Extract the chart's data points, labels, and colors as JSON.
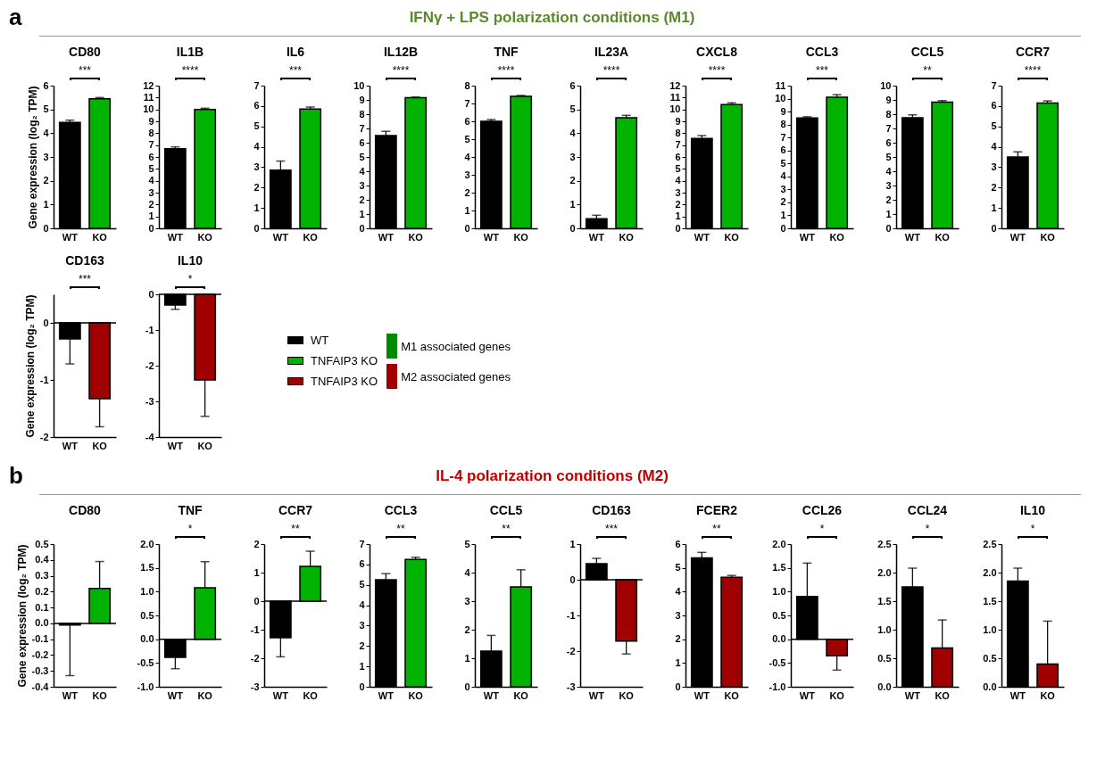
{
  "chart_data": [
    {
      "type": "other",
      "title": "IFNγ + LPS polarization conditions (M1)",
      "annotations": [
        "a"
      ],
      "colors": [
        "#5b8a2e"
      ]
    },
    {
      "type": "bar",
      "title": "CD80",
      "ylabel": "Gene expression (log₂ TPM)",
      "categories": [
        "WT",
        "KO"
      ],
      "values": [
        4.45,
        5.45
      ],
      "colors": [
        "#000000",
        "#00b300"
      ],
      "errors": [
        [
          4.45,
          4.55
        ],
        [
          5.45,
          5.5
        ]
      ],
      "ylim": [
        0,
        6
      ],
      "yticks": [
        0,
        1,
        2,
        3,
        4,
        5,
        6
      ],
      "annotations": [
        "***"
      ]
    },
    {
      "type": "bar",
      "title": "IL1B",
      "categories": [
        "WT",
        "KO"
      ],
      "values": [
        6.7,
        10.0
      ],
      "colors": [
        "#000000",
        "#00b300"
      ],
      "errors": [
        [
          6.7,
          6.85
        ],
        [
          10.0,
          10.1
        ]
      ],
      "ylim": [
        0,
        12
      ],
      "yticks": [
        0,
        1,
        2,
        3,
        4,
        5,
        6,
        7,
        8,
        9,
        10,
        11,
        12
      ],
      "annotations": [
        "****"
      ]
    },
    {
      "type": "bar",
      "title": "IL6",
      "categories": [
        "WT",
        "KO"
      ],
      "values": [
        2.85,
        5.85
      ],
      "colors": [
        "#000000",
        "#00b300"
      ],
      "errors": [
        [
          2.85,
          3.3
        ],
        [
          5.85,
          5.95
        ]
      ],
      "ylim": [
        0,
        7
      ],
      "yticks": [
        0,
        1,
        2,
        3,
        4,
        5,
        6,
        7
      ],
      "annotations": [
        "***"
      ]
    },
    {
      "type": "bar",
      "title": "IL12B",
      "categories": [
        "WT",
        "KO"
      ],
      "values": [
        6.5,
        9.15
      ],
      "colors": [
        "#000000",
        "#00b300"
      ],
      "errors": [
        [
          6.5,
          6.8
        ],
        [
          9.15,
          9.2
        ]
      ],
      "ylim": [
        0,
        10
      ],
      "yticks": [
        0,
        1,
        2,
        3,
        4,
        5,
        6,
        7,
        8,
        9,
        10
      ],
      "annotations": [
        "****"
      ]
    },
    {
      "type": "bar",
      "title": "TNF",
      "categories": [
        "WT",
        "KO"
      ],
      "values": [
        6.0,
        7.4
      ],
      "colors": [
        "#000000",
        "#00b300"
      ],
      "errors": [
        [
          6.0,
          6.1
        ],
        [
          7.4,
          7.45
        ]
      ],
      "ylim": [
        0,
        8
      ],
      "yticks": [
        0,
        1,
        2,
        3,
        4,
        5,
        6,
        7,
        8
      ],
      "annotations": [
        "****"
      ]
    },
    {
      "type": "bar",
      "title": "IL23A",
      "categories": [
        "WT",
        "KO"
      ],
      "values": [
        0.4,
        4.65
      ],
      "colors": [
        "#000000",
        "#00b300"
      ],
      "errors": [
        [
          0.4,
          0.55
        ],
        [
          4.65,
          4.75
        ]
      ],
      "ylim": [
        0,
        6
      ],
      "yticks": [
        0,
        1,
        2,
        3,
        4,
        5,
        6
      ],
      "annotations": [
        "****"
      ]
    },
    {
      "type": "bar",
      "title": "CXCL8",
      "categories": [
        "WT",
        "KO"
      ],
      "values": [
        7.55,
        10.4
      ],
      "colors": [
        "#000000",
        "#00b300"
      ],
      "errors": [
        [
          7.55,
          7.8
        ],
        [
          10.4,
          10.55
        ]
      ],
      "ylim": [
        0,
        12
      ],
      "yticks": [
        0,
        1,
        2,
        3,
        4,
        5,
        6,
        7,
        8,
        9,
        10,
        11,
        12
      ],
      "annotations": [
        "****"
      ]
    },
    {
      "type": "bar",
      "title": "CCL3",
      "categories": [
        "WT",
        "KO"
      ],
      "values": [
        8.5,
        10.1
      ],
      "colors": [
        "#000000",
        "#00b300"
      ],
      "errors": [
        [
          8.5,
          8.6
        ],
        [
          10.1,
          10.3
        ]
      ],
      "ylim": [
        0,
        11
      ],
      "yticks": [
        0,
        1,
        2,
        3,
        4,
        5,
        6,
        7,
        8,
        9,
        10,
        11
      ],
      "annotations": [
        "***"
      ]
    },
    {
      "type": "bar",
      "title": "CCL5",
      "categories": [
        "WT",
        "KO"
      ],
      "values": [
        7.75,
        8.85
      ],
      "colors": [
        "#000000",
        "#00b300"
      ],
      "errors": [
        [
          7.75,
          7.95
        ],
        [
          8.85,
          8.95
        ]
      ],
      "ylim": [
        0,
        10
      ],
      "yticks": [
        0,
        1,
        2,
        3,
        4,
        5,
        6,
        7,
        8,
        9,
        10
      ],
      "annotations": [
        "**"
      ]
    },
    {
      "type": "bar",
      "title": "CCR7",
      "categories": [
        "WT",
        "KO"
      ],
      "values": [
        3.5,
        6.15
      ],
      "colors": [
        "#000000",
        "#00b300"
      ],
      "errors": [
        [
          3.5,
          3.75
        ],
        [
          6.15,
          6.25
        ]
      ],
      "ylim": [
        0,
        7
      ],
      "yticks": [
        0,
        1,
        2,
        3,
        4,
        5,
        6,
        7
      ],
      "annotations": [
        "****"
      ]
    },
    {
      "type": "bar",
      "title": "CD163",
      "ylabel": "Gene expression (log₂ TPM)",
      "categories": [
        "WT",
        "KO"
      ],
      "values": [
        -0.28,
        -1.33
      ],
      "colors": [
        "#000000",
        "#a00000"
      ],
      "errors": [
        [
          -0.72,
          -0.28
        ],
        [
          -1.82,
          -1.33
        ]
      ],
      "ylim": [
        -2,
        0.5
      ],
      "yticks": [
        -2,
        -1,
        0
      ],
      "ref_lines": [
        {
          "axis": "y",
          "value": 0
        }
      ],
      "annotations": [
        "***"
      ]
    },
    {
      "type": "bar",
      "title": "IL10",
      "categories": [
        "WT",
        "KO"
      ],
      "values": [
        -0.3,
        -2.4
      ],
      "colors": [
        "#000000",
        "#a00000"
      ],
      "errors": [
        [
          -0.42,
          -0.3
        ],
        [
          -3.42,
          -2.4
        ]
      ],
      "ylim": [
        -4,
        0
      ],
      "yticks": [
        -4,
        -3,
        -2,
        -1,
        0
      ],
      "ref_lines": [
        {
          "axis": "y",
          "value": 0
        }
      ],
      "annotations": [
        "*"
      ]
    },
    {
      "type": "other",
      "legend": "right",
      "series": [
        {
          "name": "WT",
          "color": "#000000"
        },
        {
          "name": "TNFAIP3 KO",
          "color": "#00b300"
        },
        {
          "name": "TNFAIP3 KO",
          "color": "#a00000"
        },
        {
          "name": "M1 associated genes",
          "color": "#008a00"
        },
        {
          "name": "M2 associated genes",
          "color": "#a00000"
        }
      ]
    },
    {
      "type": "other",
      "title": "IL-4 polarization conditions (M2)",
      "annotations": [
        "b"
      ],
      "colors": [
        "#c00000"
      ]
    },
    {
      "type": "bar",
      "title": "CD80",
      "ylabel": "Gene expression (log₂ TPM)",
      "categories": [
        "WT",
        "KO"
      ],
      "values": [
        -0.01,
        0.22
      ],
      "colors": [
        "#000000",
        "#00b300"
      ],
      "errors": [
        [
          -0.33,
          -0.01
        ],
        [
          0.22,
          0.39
        ]
      ],
      "ylim": [
        -0.4,
        0.5
      ],
      "yticks": [
        -0.4,
        -0.3,
        -0.2,
        -0.1,
        {
          "value": 0,
          "label": "0.0"
        },
        0.1,
        0.2,
        0.3,
        0.4,
        0.5
      ],
      "ref_lines": [
        {
          "axis": "y",
          "value": 0
        }
      ]
    },
    {
      "type": "bar",
      "title": "TNF",
      "categories": [
        "WT",
        "KO"
      ],
      "values": [
        -0.38,
        1.08
      ],
      "colors": [
        "#000000",
        "#00b300"
      ],
      "errors": [
        [
          -0.62,
          -0.38
        ],
        [
          1.08,
          1.63
        ]
      ],
      "ylim": [
        -1,
        2
      ],
      "yticks": [
        {
          "value": -1,
          "label": "-1.0"
        },
        -0.5,
        {
          "value": 0,
          "label": "0.0"
        },
        0.5,
        {
          "value": 1,
          "label": "1.0"
        },
        1.5,
        {
          "value": 2,
          "label": "2.0"
        }
      ],
      "ref_lines": [
        {
          "axis": "y",
          "value": 0
        }
      ],
      "annotations": [
        "*"
      ]
    },
    {
      "type": "bar",
      "title": "CCR7",
      "categories": [
        "WT",
        "KO"
      ],
      "values": [
        -1.28,
        1.22
      ],
      "colors": [
        "#000000",
        "#00b300"
      ],
      "errors": [
        [
          -1.95,
          -1.28
        ],
        [
          1.22,
          1.75
        ]
      ],
      "ylim": [
        -3,
        2
      ],
      "yticks": [
        -3,
        -2,
        -1,
        0,
        1,
        2
      ],
      "ref_lines": [
        {
          "axis": "y",
          "value": 0
        }
      ],
      "annotations": [
        "**"
      ]
    },
    {
      "type": "bar",
      "title": "CCL3",
      "categories": [
        "WT",
        "KO"
      ],
      "values": [
        5.25,
        6.25
      ],
      "colors": [
        "#000000",
        "#00b300"
      ],
      "errors": [
        [
          5.25,
          5.55
        ],
        [
          6.25,
          6.35
        ]
      ],
      "ylim": [
        0,
        7
      ],
      "yticks": [
        0,
        1,
        2,
        3,
        4,
        5,
        6,
        7
      ],
      "annotations": [
        "**"
      ]
    },
    {
      "type": "bar",
      "title": "CCL5",
      "categories": [
        "WT",
        "KO"
      ],
      "values": [
        1.25,
        3.5
      ],
      "colors": [
        "#000000",
        "#00b300"
      ],
      "errors": [
        [
          1.25,
          1.8
        ],
        [
          3.5,
          4.1
        ]
      ],
      "ylim": [
        0,
        5
      ],
      "yticks": [
        0,
        1,
        2,
        3,
        4,
        5
      ],
      "annotations": [
        "**"
      ]
    },
    {
      "type": "bar",
      "title": "CD163",
      "categories": [
        "WT",
        "KO"
      ],
      "values": [
        0.45,
        -1.72
      ],
      "colors": [
        "#000000",
        "#a00000"
      ],
      "errors": [
        [
          0.45,
          0.6
        ],
        [
          -2.08,
          -1.72
        ]
      ],
      "ylim": [
        -3,
        1
      ],
      "yticks": [
        -3,
        -2,
        -1,
        0,
        1
      ],
      "ref_lines": [
        {
          "axis": "y",
          "value": 0
        }
      ],
      "annotations": [
        "***"
      ]
    },
    {
      "type": "bar",
      "title": "FCER2",
      "categories": [
        "WT",
        "KO"
      ],
      "values": [
        5.42,
        4.6
      ],
      "colors": [
        "#000000",
        "#a00000"
      ],
      "errors": [
        [
          5.42,
          5.65
        ],
        [
          4.6,
          4.68
        ]
      ],
      "ylim": [
        0,
        6
      ],
      "yticks": [
        0,
        1,
        2,
        3,
        4,
        5,
        6
      ],
      "annotations": [
        "**"
      ]
    },
    {
      "type": "bar",
      "title": "CCL26",
      "categories": [
        "WT",
        "KO"
      ],
      "values": [
        0.9,
        -0.35
      ],
      "colors": [
        "#000000",
        "#a00000"
      ],
      "errors": [
        [
          0.9,
          1.6
        ],
        [
          -0.65,
          -0.35
        ]
      ],
      "ylim": [
        -1,
        2
      ],
      "yticks": [
        {
          "value": -1,
          "label": "-1.0"
        },
        -0.5,
        {
          "value": 0,
          "label": "0.0"
        },
        0.5,
        {
          "value": 1,
          "label": "1.0"
        },
        1.5,
        {
          "value": 2,
          "label": "2.0"
        }
      ],
      "ref_lines": [
        {
          "axis": "y",
          "value": 0
        }
      ],
      "annotations": [
        "*"
      ]
    },
    {
      "type": "bar",
      "title": "CCL24",
      "categories": [
        "WT",
        "KO"
      ],
      "values": [
        1.75,
        0.68
      ],
      "colors": [
        "#000000",
        "#a00000"
      ],
      "errors": [
        [
          1.75,
          2.08
        ],
        [
          0.68,
          1.17
        ]
      ],
      "ylim": [
        0,
        2.5
      ],
      "yticks": [
        {
          "value": 0,
          "label": "0.0"
        },
        0.5,
        {
          "value": 1,
          "label": "1.0"
        },
        1.5,
        {
          "value": 2,
          "label": "2.0"
        },
        2.5
      ],
      "annotations": [
        "*"
      ]
    },
    {
      "type": "bar",
      "title": "IL10",
      "categories": [
        "WT",
        "KO"
      ],
      "values": [
        1.85,
        0.4
      ],
      "colors": [
        "#000000",
        "#a00000"
      ],
      "errors": [
        [
          1.85,
          2.08
        ],
        [
          0.4,
          1.15
        ]
      ],
      "ylim": [
        0,
        2.5
      ],
      "yticks": [
        {
          "value": 0,
          "label": "0.0"
        },
        0.5,
        {
          "value": 1,
          "label": "1.0"
        },
        1.5,
        {
          "value": 2,
          "label": "2.0"
        },
        2.5
      ],
      "annotations": [
        "*"
      ]
    }
  ]
}
